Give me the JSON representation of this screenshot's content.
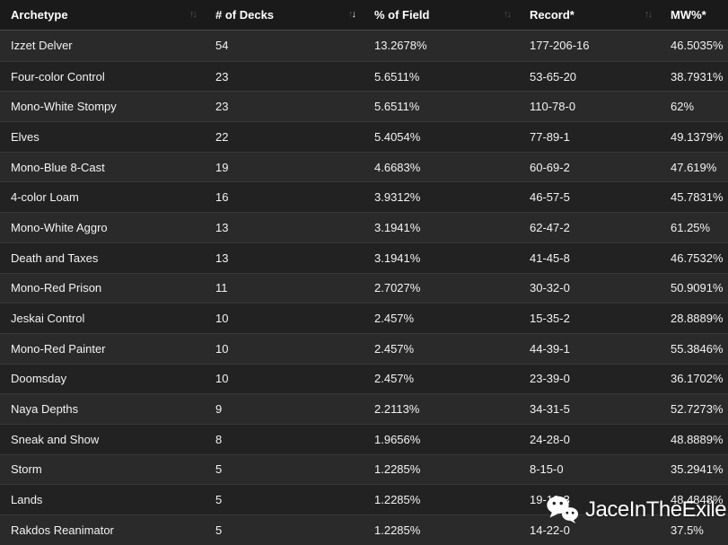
{
  "table": {
    "columns": [
      {
        "label": "Archetype",
        "sortable": true,
        "sort": "none"
      },
      {
        "label": "# of Decks",
        "sortable": true,
        "sort": "desc"
      },
      {
        "label": "% of Field",
        "sortable": true,
        "sort": "none"
      },
      {
        "label": "Record*",
        "sortable": true,
        "sort": "none"
      },
      {
        "label": "MW%*",
        "sortable": false,
        "sort": "none"
      }
    ],
    "rows": [
      {
        "archetype": "Izzet Delver",
        "decks": "54",
        "field_pct": "13.2678%",
        "record": "177-206-16",
        "mw_pct": "46.5035%"
      },
      {
        "archetype": "Four-color Control",
        "decks": "23",
        "field_pct": "5.6511%",
        "record": "53-65-20",
        "mw_pct": "38.7931%"
      },
      {
        "archetype": "Mono-White Stompy",
        "decks": "23",
        "field_pct": "5.6511%",
        "record": "110-78-0",
        "mw_pct": "62%"
      },
      {
        "archetype": "Elves",
        "decks": "22",
        "field_pct": "5.4054%",
        "record": "77-89-1",
        "mw_pct": "49.1379%"
      },
      {
        "archetype": "Mono-Blue 8-Cast",
        "decks": "19",
        "field_pct": "4.6683%",
        "record": "60-69-2",
        "mw_pct": "47.619%"
      },
      {
        "archetype": "4-color Loam",
        "decks": "16",
        "field_pct": "3.9312%",
        "record": "46-57-5",
        "mw_pct": "45.7831%"
      },
      {
        "archetype": "Mono-White Aggro",
        "decks": "13",
        "field_pct": "3.1941%",
        "record": "62-47-2",
        "mw_pct": "61.25%"
      },
      {
        "archetype": "Death and Taxes",
        "decks": "13",
        "field_pct": "3.1941%",
        "record": "41-45-8",
        "mw_pct": "46.7532%"
      },
      {
        "archetype": "Mono-Red Prison",
        "decks": "11",
        "field_pct": "2.7027%",
        "record": "30-32-0",
        "mw_pct": "50.9091%"
      },
      {
        "archetype": "Jeskai Control",
        "decks": "10",
        "field_pct": "2.457%",
        "record": "15-35-2",
        "mw_pct": "28.8889%"
      },
      {
        "archetype": "Mono-Red Painter",
        "decks": "10",
        "field_pct": "2.457%",
        "record": "44-39-1",
        "mw_pct": "55.3846%"
      },
      {
        "archetype": "Doomsday",
        "decks": "10",
        "field_pct": "2.457%",
        "record": "23-39-0",
        "mw_pct": "36.1702%"
      },
      {
        "archetype": "Naya Depths",
        "decks": "9",
        "field_pct": "2.2113%",
        "record": "34-31-5",
        "mw_pct": "52.7273%"
      },
      {
        "archetype": "Sneak and Show",
        "decks": "8",
        "field_pct": "1.9656%",
        "record": "24-28-0",
        "mw_pct": "48.8889%"
      },
      {
        "archetype": "Storm",
        "decks": "5",
        "field_pct": "1.2285%",
        "record": "8-15-0",
        "mw_pct": "35.2941%"
      },
      {
        "archetype": "Lands",
        "decks": "5",
        "field_pct": "1.2285%",
        "record": "19-19-3",
        "mw_pct": "48.4848%"
      },
      {
        "archetype": "Rakdos Reanimator",
        "decks": "5",
        "field_pct": "1.2285%",
        "record": "14-22-0",
        "mw_pct": "37.5%"
      }
    ]
  },
  "icons": {
    "sort": "sort-arrows-icon",
    "sort_glyph_up": "↑",
    "sort_glyph_down": "↓",
    "watermark": "wechat-icon"
  },
  "watermark": {
    "label": "JaceInTheExile"
  },
  "colors": {
    "header_bg": "#1a1a1a",
    "row_odd_bg": "#2a2a2a",
    "row_even_bg": "#222222",
    "row_separator": "#383838",
    "header_separator": "#4a4a4a",
    "text": "#f3f3f3",
    "header_text": "#ffffff",
    "sort_inactive": "#525252",
    "sort_active": "#f2f2f2",
    "watermark": "#ffffff"
  }
}
